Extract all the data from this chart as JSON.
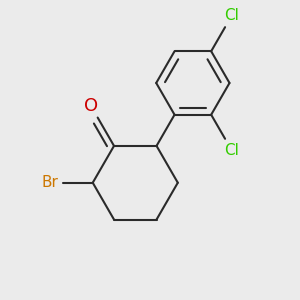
{
  "background_color": "#ebebeb",
  "bond_color": "#2a2a2a",
  "bond_width": 1.5,
  "cl_color": "#33cc00",
  "br_color": "#cc7700",
  "o_color": "#cc0000",
  "figsize": [
    3.0,
    3.0
  ],
  "dpi": 100,
  "xlim": [
    0.05,
    0.95
  ],
  "ylim": [
    0.05,
    0.95
  ],
  "font_size_atom": 11
}
